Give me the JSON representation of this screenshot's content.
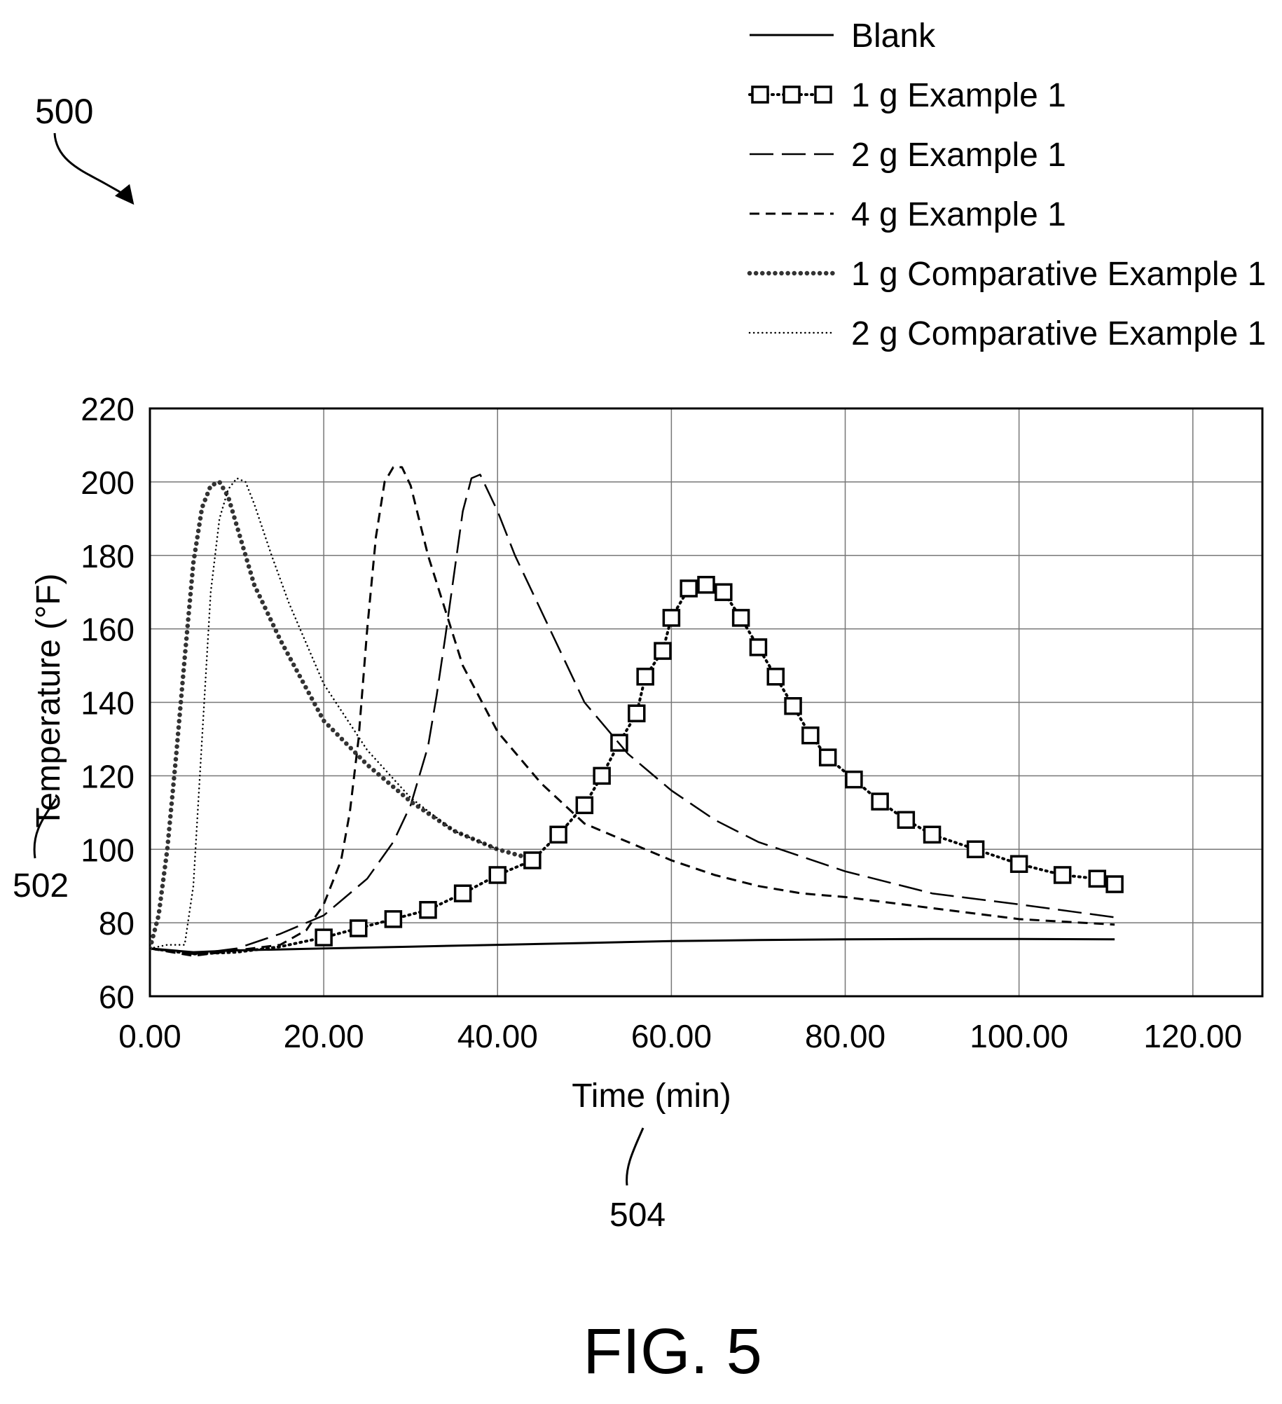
{
  "figure": {
    "ref_number": "500",
    "y_axis_ref": "502",
    "x_axis_ref": "504",
    "caption": "FIG. 5"
  },
  "chart_data": {
    "type": "line",
    "xlabel": "Time (min)",
    "ylabel": "Temperature (°F)",
    "xlim": [
      0,
      128
    ],
    "ylim": [
      60,
      220
    ],
    "xticks": [
      0,
      20,
      40,
      60,
      80,
      100,
      120
    ],
    "xtick_labels": [
      "0.00",
      "20.00",
      "40.00",
      "60.00",
      "80.00",
      "100.00",
      "120.00"
    ],
    "yticks": [
      60,
      80,
      100,
      120,
      140,
      160,
      180,
      200,
      220
    ],
    "ytick_labels": [
      "60",
      "80",
      "100",
      "120",
      "140",
      "160",
      "180",
      "200",
      "220"
    ],
    "grid": true,
    "legend_position": "top-right, above plot",
    "series": [
      {
        "name": "Blank",
        "style": "solid",
        "points": [
          [
            0,
            73
          ],
          [
            5,
            72
          ],
          [
            10,
            72.5
          ],
          [
            20,
            73
          ],
          [
            30,
            73.5
          ],
          [
            40,
            74
          ],
          [
            50,
            74.5
          ],
          [
            60,
            75
          ],
          [
            70,
            75.3
          ],
          [
            80,
            75.5
          ],
          [
            90,
            75.6
          ],
          [
            100,
            75.6
          ],
          [
            111,
            75.5
          ]
        ]
      },
      {
        "name": "1 g Example 1",
        "style": "squares",
        "points": [
          [
            0,
            73
          ],
          [
            5,
            71.5
          ],
          [
            10,
            72
          ],
          [
            15,
            73.5
          ],
          [
            20,
            76
          ],
          [
            24,
            78.5
          ],
          [
            28,
            81
          ],
          [
            32,
            83.5
          ],
          [
            36,
            88
          ],
          [
            40,
            93
          ],
          [
            44,
            97
          ],
          [
            47,
            104
          ],
          [
            50,
            112
          ],
          [
            52,
            120
          ],
          [
            54,
            129
          ],
          [
            56,
            137
          ],
          [
            57,
            147
          ],
          [
            59,
            154
          ],
          [
            60,
            163
          ],
          [
            62,
            171
          ],
          [
            64,
            172
          ],
          [
            66,
            170
          ],
          [
            68,
            163
          ],
          [
            70,
            155
          ],
          [
            72,
            147
          ],
          [
            74,
            139
          ],
          [
            76,
            131
          ],
          [
            78,
            125
          ],
          [
            81,
            119
          ],
          [
            84,
            113
          ],
          [
            87,
            108
          ],
          [
            90,
            104
          ],
          [
            95,
            100
          ],
          [
            100,
            96
          ],
          [
            105,
            93
          ],
          [
            109,
            92
          ],
          [
            111,
            90.5
          ]
        ]
      },
      {
        "name": "2 g Example 1",
        "style": "long-dash",
        "points": [
          [
            0,
            73
          ],
          [
            5,
            71.5
          ],
          [
            10,
            73
          ],
          [
            15,
            77
          ],
          [
            20,
            82
          ],
          [
            25,
            92
          ],
          [
            28,
            102
          ],
          [
            30,
            112
          ],
          [
            32,
            128
          ],
          [
            33,
            142
          ],
          [
            34,
            158
          ],
          [
            35,
            175
          ],
          [
            36,
            192
          ],
          [
            37,
            201
          ],
          [
            38,
            202
          ],
          [
            40,
            192
          ],
          [
            42,
            180
          ],
          [
            44,
            170
          ],
          [
            46,
            160
          ],
          [
            50,
            140
          ],
          [
            55,
            126
          ],
          [
            60,
            116
          ],
          [
            65,
            108
          ],
          [
            70,
            102
          ],
          [
            75,
            98
          ],
          [
            80,
            94
          ],
          [
            85,
            91
          ],
          [
            90,
            88
          ],
          [
            100,
            85
          ],
          [
            111,
            81.5
          ]
        ]
      },
      {
        "name": "4 g Example 1",
        "style": "dash",
        "points": [
          [
            0,
            73
          ],
          [
            5,
            71
          ],
          [
            10,
            72.5
          ],
          [
            15,
            74
          ],
          [
            18,
            78
          ],
          [
            20,
            85
          ],
          [
            22,
            97
          ],
          [
            23,
            110
          ],
          [
            24,
            130
          ],
          [
            25,
            160
          ],
          [
            26,
            185
          ],
          [
            27,
            200
          ],
          [
            28,
            204
          ],
          [
            29,
            204
          ],
          [
            30,
            199
          ],
          [
            32,
            180
          ],
          [
            34,
            165
          ],
          [
            36,
            150
          ],
          [
            40,
            132
          ],
          [
            45,
            118
          ],
          [
            50,
            107
          ],
          [
            55,
            102
          ],
          [
            60,
            97
          ],
          [
            65,
            93
          ],
          [
            70,
            90
          ],
          [
            75,
            88
          ],
          [
            80,
            87
          ],
          [
            90,
            84
          ],
          [
            100,
            81
          ],
          [
            111,
            79.5
          ]
        ]
      },
      {
        "name": "1 g Comparative Example 1",
        "style": "bold-dots",
        "points": [
          [
            0,
            73
          ],
          [
            1,
            82
          ],
          [
            2,
            100
          ],
          [
            3,
            125
          ],
          [
            4,
            152
          ],
          [
            5,
            178
          ],
          [
            6,
            193
          ],
          [
            7,
            199
          ],
          [
            8,
            200
          ],
          [
            9,
            196
          ],
          [
            10,
            188
          ],
          [
            12,
            172
          ],
          [
            15,
            157
          ],
          [
            20,
            135
          ],
          [
            25,
            123
          ],
          [
            30,
            113
          ],
          [
            35,
            105
          ],
          [
            40,
            100
          ],
          [
            43,
            98
          ]
        ]
      },
      {
        "name": "2 g Comparative Example 1",
        "style": "fine-dots",
        "points": [
          [
            0,
            73
          ],
          [
            2,
            74
          ],
          [
            4,
            74
          ],
          [
            5,
            90
          ],
          [
            6,
            130
          ],
          [
            7,
            170
          ],
          [
            8,
            190
          ],
          [
            9,
            198
          ],
          [
            10,
            201
          ],
          [
            11,
            200
          ],
          [
            12,
            194
          ],
          [
            14,
            180
          ],
          [
            16,
            167
          ],
          [
            20,
            145
          ],
          [
            25,
            127
          ],
          [
            30,
            114
          ],
          [
            35,
            105
          ],
          [
            40,
            100
          ]
        ]
      }
    ]
  }
}
